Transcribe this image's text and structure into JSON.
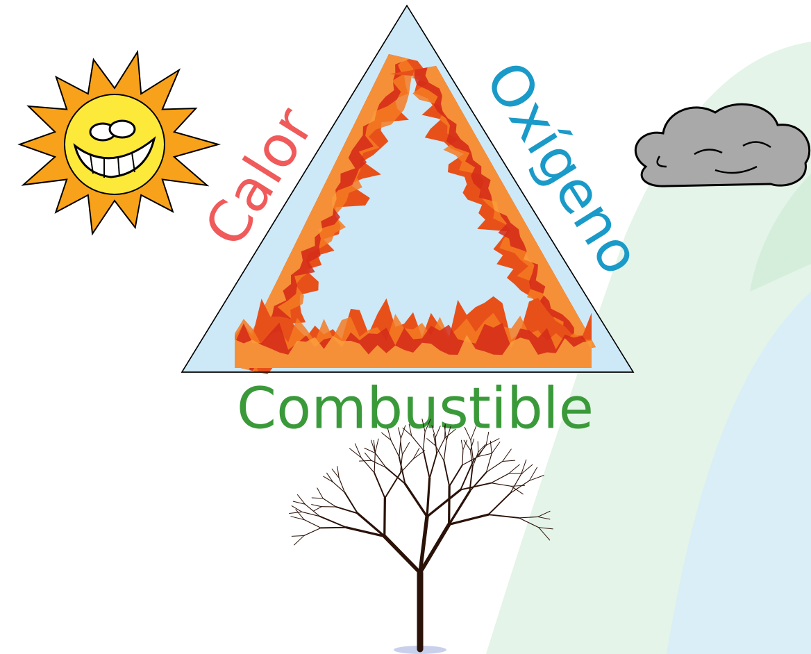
{
  "triangle": {
    "sides": [
      {
        "label": "Calor"
      },
      {
        "label": "Oxígeno"
      },
      {
        "label": "Combustible"
      }
    ]
  }
}
